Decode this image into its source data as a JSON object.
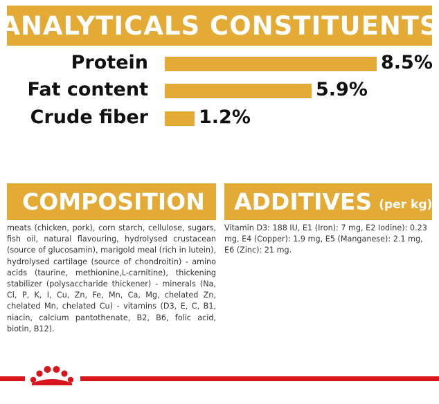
{
  "analytics": {
    "title": "ANALYTICALS CONSTITUENTS",
    "items": [
      {
        "label": "Protein",
        "value_text": "8.5%",
        "value": 8.5
      },
      {
        "label": "Fat content",
        "value_text": "5.9%",
        "value": 5.9
      },
      {
        "label": "Crude fiber",
        "value_text": "1.2%",
        "value": 1.2
      }
    ]
  },
  "composition": {
    "title": "COMPOSITION",
    "text": "meats (chicken, pork), corn starch, cellulose, sugars, fish oil, natural flavouring, hydrolysed crustacean (source of glucosamin), marigold meal (rich in lutein), hydrolysed cartilage (source of chondroitin) - amino acids (taurine, methionine,L-carnitine), thickening stabilizer (polysaccharide thickener) - minerals (Na, Cl, P, K, I, Cu, Zn, Fe, Mn, Ca, Mg, chelated Zn, chelated Mn, chelated Cu) - vitamins (D3, E, C, B1, niacin, calcium pantothenate, B2, B6, folic acid, biotin, B12)."
  },
  "additives": {
    "title": "ADDITIVES",
    "unit": "(per kg)",
    "text": "Vitamin D3: 188 IU, E1 (Iron): 7 mg, E2 Iodine): 0.23 mg, E4 (Copper): 1.9 mg, E5 (Manganese): 2.1 mg, E6 (Zinc): 21 mg."
  },
  "footer": {
    "logo_icon": "royal-canin-crown-icon",
    "accent_color": "#d7161e"
  },
  "colors": {
    "banner": "#e3aa35"
  }
}
